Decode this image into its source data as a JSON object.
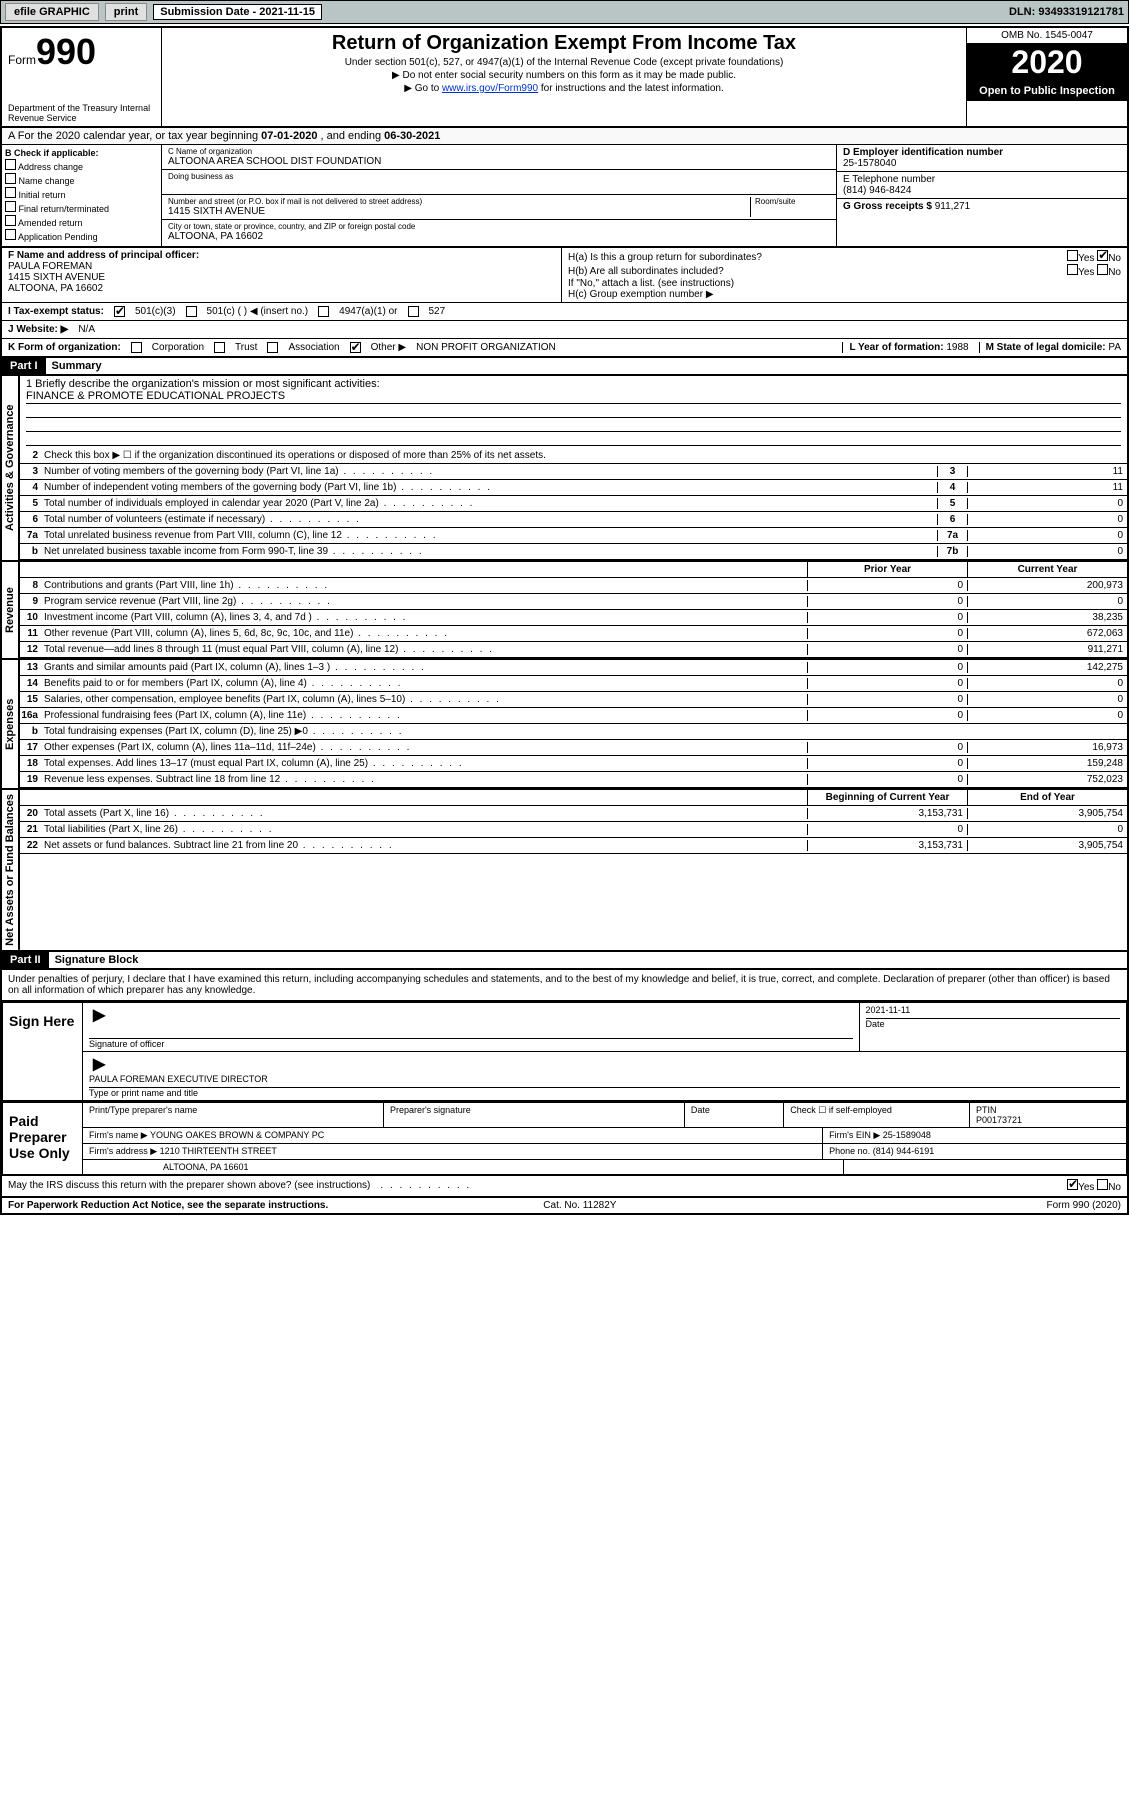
{
  "topbar": {
    "efile": "efile GRAPHIC",
    "print": "print",
    "subdate_lbl": "Submission Date -",
    "subdate": "2021-11-15",
    "dln": "DLN: 93493319121781"
  },
  "header": {
    "form_label": "Form",
    "form_num": "990",
    "dept": "Department of the Treasury\nInternal Revenue Service",
    "title": "Return of Organization Exempt From Income Tax",
    "subtitle": "Under section 501(c), 527, or 4947(a)(1) of the Internal Revenue Code (except private foundations)",
    "note1": "▶ Do not enter social security numbers on this form as it may be made public.",
    "note2": "▶ Go to www.irs.gov/Form990 for instructions and the latest information.",
    "link": "www.irs.gov/Form990",
    "omb": "OMB No. 1545-0047",
    "year": "2020",
    "open": "Open to Public Inspection"
  },
  "period": {
    "text_a": "For the 2020 calendar year, or tax year beginning ",
    "begin": "07-01-2020",
    "text_b": " , and ending ",
    "end": "06-30-2021"
  },
  "boxB": {
    "label": "B Check if applicable:",
    "items": [
      "Address change",
      "Name change",
      "Initial return",
      "Final return/terminated",
      "Amended return",
      "Application Pending"
    ]
  },
  "boxC": {
    "name_lbl": "C Name of organization",
    "name": "ALTOONA AREA SCHOOL DIST FOUNDATION",
    "dba_lbl": "Doing business as",
    "street_lbl": "Number and street (or P.O. box if mail is not delivered to street address)",
    "room_lbl": "Room/suite",
    "street": "1415 SIXTH AVENUE",
    "city_lbl": "City or town, state or province, country, and ZIP or foreign postal code",
    "city": "ALTOONA, PA  16602"
  },
  "boxD": {
    "ein_lbl": "D Employer identification number",
    "ein": "25-1578040",
    "phone_lbl": "E Telephone number",
    "phone": "(814) 946-8424",
    "gross_lbl": "G Gross receipts $",
    "gross": "911,271"
  },
  "boxF": {
    "lbl": "F Name and address of principal officer:",
    "name": "PAULA FOREMAN",
    "addr1": "1415 SIXTH AVENUE",
    "addr2": "ALTOONA, PA  16602"
  },
  "boxH": {
    "a_lbl": "H(a)  Is this a group return for subordinates?",
    "b_lbl": "H(b)  Are all subordinates included?",
    "b_note": "If \"No,\" attach a list. (see instructions)",
    "c_lbl": "H(c)  Group exemption number ▶",
    "yes": "Yes",
    "no": "No"
  },
  "taxI": {
    "lbl": "I  Tax-exempt status:",
    "opts": [
      "501(c)(3)",
      "501(c) (  ) ◀ (insert no.)",
      "4947(a)(1) or",
      "527"
    ]
  },
  "website": {
    "lbl": "J  Website: ▶",
    "val": "N/A"
  },
  "boxK": {
    "lbl": "K Form of organization:",
    "opts": [
      "Corporation",
      "Trust",
      "Association",
      "Other ▶"
    ],
    "other": "NON PROFIT ORGANIZATION",
    "L_lbl": "L Year of formation:",
    "L_val": "1988",
    "M_lbl": "M State of legal domicile:",
    "M_val": "PA"
  },
  "partI": {
    "hdr": "Part I",
    "title": "Summary",
    "side1": "Activities & Governance",
    "side2": "Revenue",
    "side3": "Expenses",
    "side4": "Net Assets or Fund Balances",
    "mission_lbl": "1  Briefly describe the organization's mission or most significant activities:",
    "mission": "FINANCE & PROMOTE EDUCATIONAL PROJECTS",
    "line2": "Check this box ▶ ☐  if the organization discontinued its operations or disposed of more than 25% of its net assets.",
    "col_prior": "Prior Year",
    "col_current": "Current Year",
    "col_boy": "Beginning of Current Year",
    "col_eoy": "End of Year",
    "rows_gov": [
      {
        "n": "3",
        "lbl": "Number of voting members of the governing body (Part VI, line 1a)",
        "box": "3",
        "val": "11"
      },
      {
        "n": "4",
        "lbl": "Number of independent voting members of the governing body (Part VI, line 1b)",
        "box": "4",
        "val": "11"
      },
      {
        "n": "5",
        "lbl": "Total number of individuals employed in calendar year 2020 (Part V, line 2a)",
        "box": "5",
        "val": "0"
      },
      {
        "n": "6",
        "lbl": "Total number of volunteers (estimate if necessary)",
        "box": "6",
        "val": "0"
      },
      {
        "n": "7a",
        "lbl": "Total unrelated business revenue from Part VIII, column (C), line 12",
        "box": "7a",
        "val": "0"
      },
      {
        "n": "b",
        "lbl": "Net unrelated business taxable income from Form 990-T, line 39",
        "box": "7b",
        "val": "0"
      }
    ],
    "rows_rev": [
      {
        "n": "8",
        "lbl": "Contributions and grants (Part VIII, line 1h)",
        "p": "0",
        "c": "200,973"
      },
      {
        "n": "9",
        "lbl": "Program service revenue (Part VIII, line 2g)",
        "p": "0",
        "c": "0"
      },
      {
        "n": "10",
        "lbl": "Investment income (Part VIII, column (A), lines 3, 4, and 7d )",
        "p": "0",
        "c": "38,235"
      },
      {
        "n": "11",
        "lbl": "Other revenue (Part VIII, column (A), lines 5, 6d, 8c, 9c, 10c, and 11e)",
        "p": "0",
        "c": "672,063"
      },
      {
        "n": "12",
        "lbl": "Total revenue—add lines 8 through 11 (must equal Part VIII, column (A), line 12)",
        "p": "0",
        "c": "911,271"
      }
    ],
    "rows_exp": [
      {
        "n": "13",
        "lbl": "Grants and similar amounts paid (Part IX, column (A), lines 1–3 )",
        "p": "0",
        "c": "142,275"
      },
      {
        "n": "14",
        "lbl": "Benefits paid to or for members (Part IX, column (A), line 4)",
        "p": "0",
        "c": "0"
      },
      {
        "n": "15",
        "lbl": "Salaries, other compensation, employee benefits (Part IX, column (A), lines 5–10)",
        "p": "0",
        "c": "0"
      },
      {
        "n": "16a",
        "lbl": "Professional fundraising fees (Part IX, column (A), line 11e)",
        "p": "0",
        "c": "0"
      },
      {
        "n": "b",
        "lbl": "Total fundraising expenses (Part IX, column (D), line 25) ▶0",
        "p": "",
        "c": "",
        "shade": true
      },
      {
        "n": "17",
        "lbl": "Other expenses (Part IX, column (A), lines 11a–11d, 11f–24e)",
        "p": "0",
        "c": "16,973"
      },
      {
        "n": "18",
        "lbl": "Total expenses. Add lines 13–17 (must equal Part IX, column (A), line 25)",
        "p": "0",
        "c": "159,248"
      },
      {
        "n": "19",
        "lbl": "Revenue less expenses. Subtract line 18 from line 12",
        "p": "0",
        "c": "752,023"
      }
    ],
    "rows_net": [
      {
        "n": "20",
        "lbl": "Total assets (Part X, line 16)",
        "p": "3,153,731",
        "c": "3,905,754"
      },
      {
        "n": "21",
        "lbl": "Total liabilities (Part X, line 26)",
        "p": "0",
        "c": "0"
      },
      {
        "n": "22",
        "lbl": "Net assets or fund balances. Subtract line 21 from line 20",
        "p": "3,153,731",
        "c": "3,905,754"
      }
    ]
  },
  "partII": {
    "hdr": "Part II",
    "title": "Signature Block",
    "decl": "Under penalties of perjury, I declare that I have examined this return, including accompanying schedules and statements, and to the best of my knowledge and belief, it is true, correct, and complete. Declaration of preparer (other than officer) is based on all information of which preparer has any knowledge."
  },
  "sign": {
    "left": "Sign Here",
    "sig_lbl": "Signature of officer",
    "date_lbl": "Date",
    "date": "2021-11-11",
    "name": "PAULA FOREMAN  EXECUTIVE DIRECTOR",
    "name_lbl": "Type or print name and title"
  },
  "paid": {
    "left": "Paid Preparer Use Only",
    "pname_lbl": "Print/Type preparer's name",
    "psig_lbl": "Preparer's signature",
    "pdate_lbl": "Date",
    "chk_lbl": "Check ☐ if self-employed",
    "ptin_lbl": "PTIN",
    "ptin": "P00173721",
    "firm_lbl": "Firm's name    ▶",
    "firm": "YOUNG OAKES BROWN & COMPANY PC",
    "fein_lbl": "Firm's EIN ▶",
    "fein": "25-1589048",
    "addr_lbl": "Firm's address ▶",
    "addr1": "1210 THIRTEENTH STREET",
    "addr2": "ALTOONA, PA  16601",
    "phone_lbl": "Phone no.",
    "phone": "(814) 944-6191",
    "discuss": "May the IRS discuss this return with the preparer shown above? (see instructions)"
  },
  "footer": {
    "pra": "For Paperwork Reduction Act Notice, see the separate instructions.",
    "cat": "Cat. No. 11282Y",
    "form": "Form 990 (2020)"
  }
}
